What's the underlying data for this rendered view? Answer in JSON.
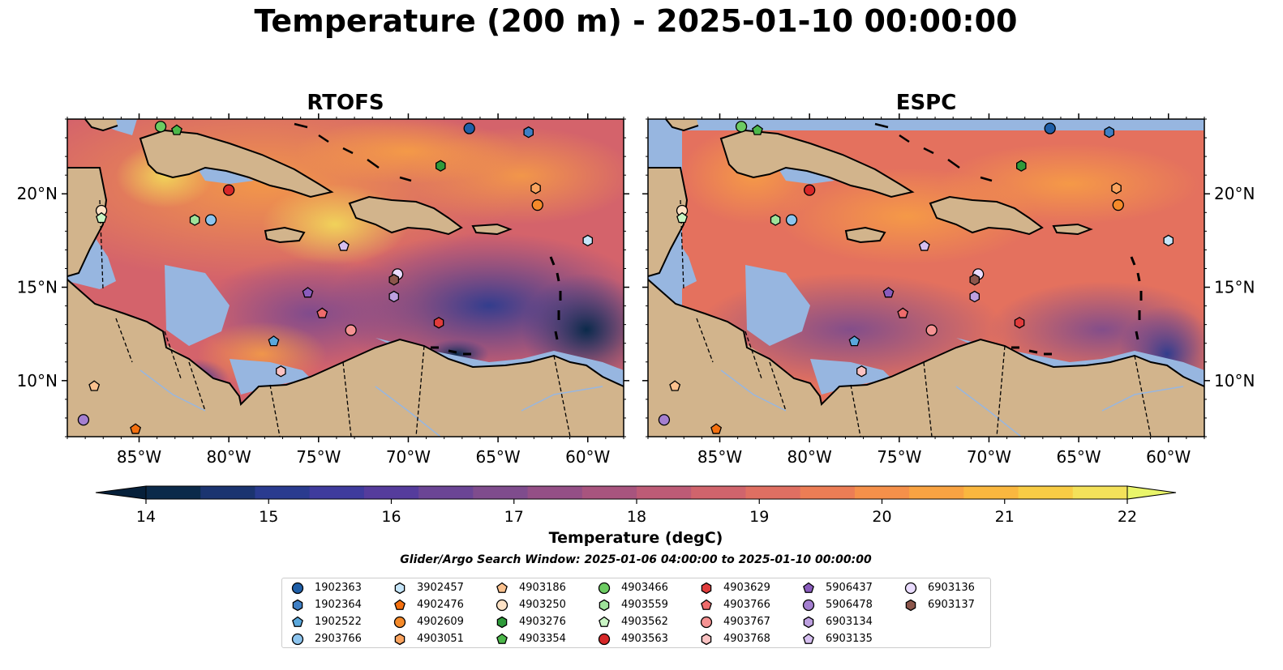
{
  "title": "Temperature (200 m) - 2025-01-10 00:00:00",
  "panels": [
    {
      "id": "rtofs",
      "title": "RTOFS"
    },
    {
      "id": "espc",
      "title": "ESPC"
    }
  ],
  "axes": {
    "lon_ticks": [
      "85°W",
      "80°W",
      "75°W",
      "70°W",
      "65°W",
      "60°W"
    ],
    "lat_ticks": [
      "20°N",
      "15°N",
      "10°N"
    ],
    "lon_range": [
      -89,
      -58
    ],
    "lat_range": [
      7,
      24
    ]
  },
  "colorbar": {
    "label": "Temperature (degC)",
    "range": [
      14,
      22
    ],
    "ticks": [
      "14",
      "15",
      "16",
      "17",
      "18",
      "19",
      "20",
      "21",
      "22"
    ],
    "colors": [
      "#0b2a4a",
      "#1b3470",
      "#2a3b8f",
      "#3f3b9d",
      "#553c9c",
      "#6b4595",
      "#7f4c8d",
      "#944f86",
      "#a8547e",
      "#bd5b76",
      "#d0646c",
      "#df6f62",
      "#ec7d55",
      "#f5904a",
      "#f9a342",
      "#fab73f",
      "#f8cc45",
      "#f3e15a"
    ],
    "extend_low": "#06203a",
    "extend_high": "#e9f56a"
  },
  "colors": {
    "land": "#d2b48c",
    "ocean_shelf": "#97b6e0",
    "deep_ocean_dark": "#062334"
  },
  "search_window": "Glider/Argo Search Window: 2025-01-06 04:00:00 to 2025-01-10 00:00:00",
  "legend": [
    {
      "label": "1902363",
      "marker": "circle",
      "color": "#1f5fa8"
    },
    {
      "label": "1902364",
      "marker": "hexagon",
      "color": "#3f7fc4"
    },
    {
      "label": "1902522",
      "marker": "pentagon",
      "color": "#5aa8dc"
    },
    {
      "label": "2903766",
      "marker": "circle",
      "color": "#8cc4ee"
    },
    {
      "label": "3902457",
      "marker": "hexagon",
      "color": "#c6e6fa"
    },
    {
      "label": "4902476",
      "marker": "pentagon",
      "color": "#f5700f"
    },
    {
      "label": "4902609",
      "marker": "circle",
      "color": "#f58a2a"
    },
    {
      "label": "4903051",
      "marker": "hexagon",
      "color": "#fba35e"
    },
    {
      "label": "4903186",
      "marker": "pentagon",
      "color": "#fbc18e"
    },
    {
      "label": "4903250",
      "marker": "circle",
      "color": "#fde2c6"
    },
    {
      "label": "4903276",
      "marker": "hexagon",
      "color": "#2e9a3a"
    },
    {
      "label": "4903354",
      "marker": "pentagon",
      "color": "#4cb84a"
    },
    {
      "label": "4903466",
      "marker": "circle",
      "color": "#6ccb62"
    },
    {
      "label": "4903559",
      "marker": "hexagon",
      "color": "#9ee39a"
    },
    {
      "label": "4903562",
      "marker": "pentagon",
      "color": "#c9f5c4"
    },
    {
      "label": "4903563",
      "marker": "circle",
      "color": "#d62728"
    },
    {
      "label": "4903629",
      "marker": "hexagon",
      "color": "#e03c3c"
    },
    {
      "label": "4903766",
      "marker": "pentagon",
      "color": "#ee6b6b"
    },
    {
      "label": "4903767",
      "marker": "circle",
      "color": "#f59292"
    },
    {
      "label": "4903768",
      "marker": "hexagon",
      "color": "#fbc2c2"
    },
    {
      "label": "5906437",
      "marker": "pentagon",
      "color": "#8a5cbd"
    },
    {
      "label": "5906478",
      "marker": "circle",
      "color": "#a47fd0"
    },
    {
      "label": "6903134",
      "marker": "hexagon",
      "color": "#bda0e0"
    },
    {
      "label": "6903135",
      "marker": "pentagon",
      "color": "#d6bff0"
    },
    {
      "label": "6903136",
      "marker": "circle",
      "color": "#eadcff"
    },
    {
      "label": "6903137",
      "marker": "hexagon",
      "color": "#8c564b"
    }
  ],
  "floats": [
    {
      "id": "4903466",
      "lon": -83.8,
      "lat": 23.6
    },
    {
      "id": "4903354",
      "lon": -82.9,
      "lat": 23.4
    },
    {
      "id": "1902363",
      "lon": -66.6,
      "lat": 23.5
    },
    {
      "id": "1902364",
      "lon": -63.3,
      "lat": 23.3
    },
    {
      "id": "4903276",
      "lon": -68.2,
      "lat": 21.5
    },
    {
      "id": "4903563",
      "lon": -80.0,
      "lat": 20.2
    },
    {
      "id": "4903051",
      "lon": -62.9,
      "lat": 20.3
    },
    {
      "id": "4902609",
      "lon": -62.8,
      "lat": 19.4
    },
    {
      "id": "4903250",
      "lon": -87.1,
      "lat": 19.1
    },
    {
      "id": "4903562",
      "lon": -87.1,
      "lat": 18.7
    },
    {
      "id": "4903559",
      "lon": -81.9,
      "lat": 18.6
    },
    {
      "id": "2903766",
      "lon": -81.0,
      "lat": 18.6
    },
    {
      "id": "3902457",
      "lon": -60.0,
      "lat": 17.5
    },
    {
      "id": "6903135",
      "lon": -73.6,
      "lat": 17.2
    },
    {
      "id": "6903136",
      "lon": -70.6,
      "lat": 15.7
    },
    {
      "id": "6903137",
      "lon": -70.8,
      "lat": 15.4
    },
    {
      "id": "5906437",
      "lon": -75.6,
      "lat": 14.7
    },
    {
      "id": "6903134",
      "lon": -70.8,
      "lat": 14.5
    },
    {
      "id": "4903766",
      "lon": -74.8,
      "lat": 13.6
    },
    {
      "id": "4903629",
      "lon": -68.3,
      "lat": 13.1
    },
    {
      "id": "4903767",
      "lon": -73.2,
      "lat": 12.7
    },
    {
      "id": "1902522",
      "lon": -77.5,
      "lat": 12.1
    },
    {
      "id": "4903768",
      "lon": -77.1,
      "lat": 10.5
    },
    {
      "id": "4903186",
      "lon": -87.5,
      "lat": 9.7
    },
    {
      "id": "5906478",
      "lon": -88.1,
      "lat": 7.9
    },
    {
      "id": "4902476",
      "lon": -85.2,
      "lat": 7.4
    }
  ]
}
